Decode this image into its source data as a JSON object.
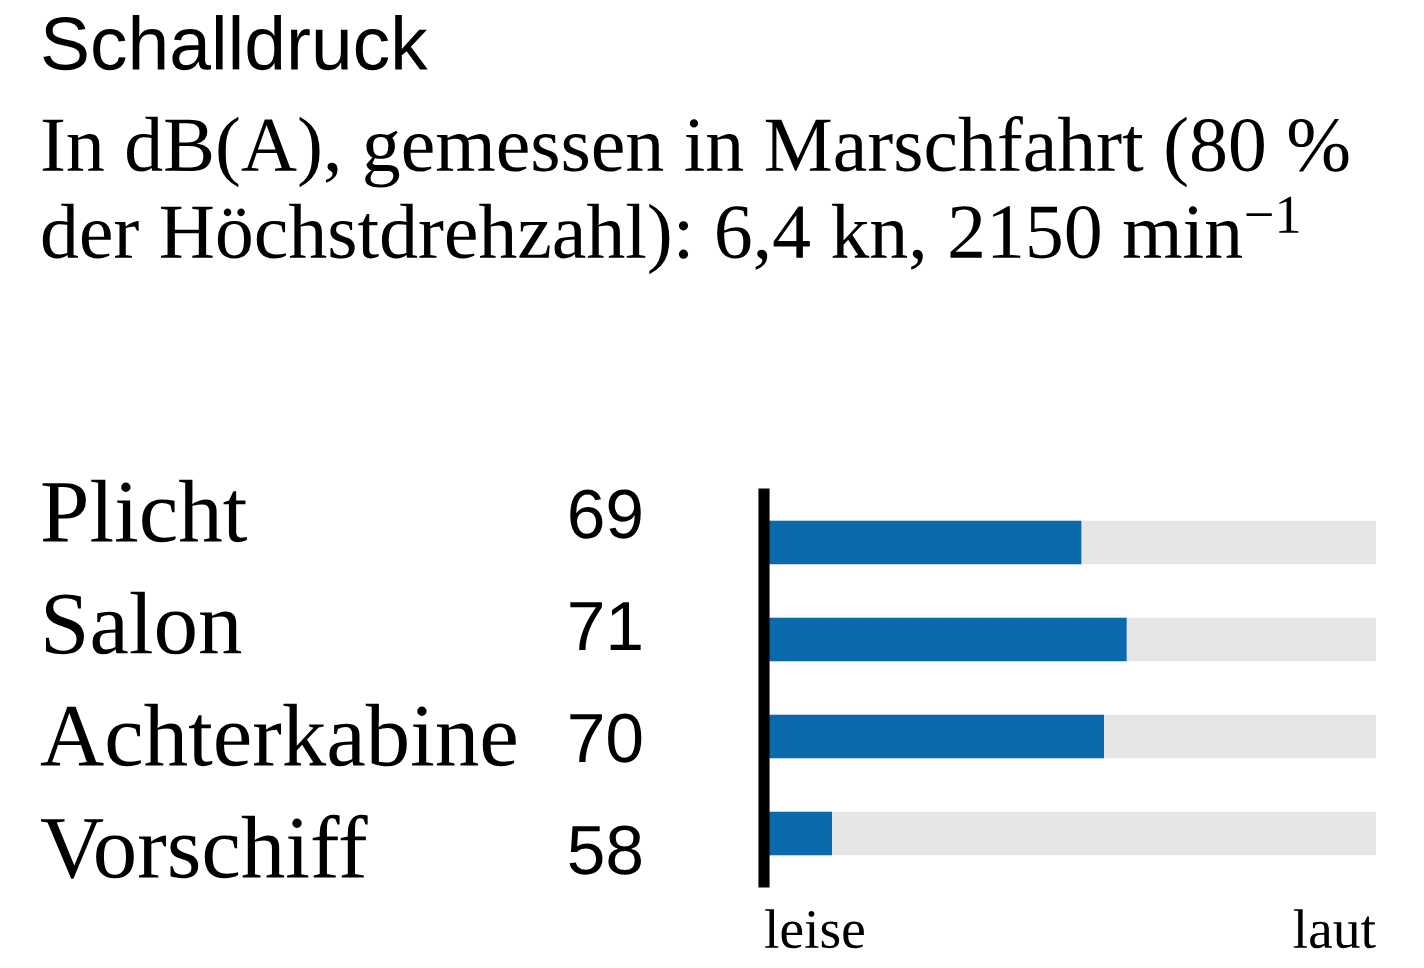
{
  "chart_data": {
    "type": "bar",
    "orientation": "horizontal",
    "title": "Schalldruck",
    "subtitle": "In dB(A), gemessen in Marschfahrt (80 % der Höchstdrehzahl): 6,4 kn, 2150 min$^{−1}$",
    "categories": [
      "Plicht",
      "Salon",
      "Achterkabine",
      "Vorschiff"
    ],
    "values": [
      69,
      71,
      70,
      58
    ],
    "color": "#0a6aab",
    "data_labels": true,
    "xlim": [
      55,
      82
    ],
    "annotations": [
      "leise",
      "laut"
    ],
    "bands": [
      {
        "axis": "x",
        "from": 55,
        "to": 82,
        "color": "#e6e6e6"
      }
    ]
  }
}
